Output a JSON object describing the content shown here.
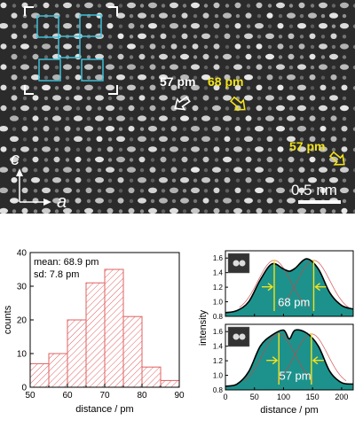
{
  "top_panel": {
    "axis_c": "c",
    "axis_a": "a",
    "label_white": "57 pm",
    "label_yellow_1": "68 pm",
    "label_yellow_2": "57 pm",
    "scale_bar": "0.5 nm",
    "colors": {
      "yellow": "#f2e21b",
      "cyan": "#3cc0d8",
      "white": "#ffffff"
    }
  },
  "chart_data": [
    {
      "type": "bar",
      "bin_edges": [
        50,
        55,
        60,
        65,
        70,
        75,
        80,
        85,
        90
      ],
      "values": [
        7,
        10,
        20,
        31,
        35,
        21,
        6,
        2
      ],
      "xlabel": "distance / pm",
      "ylabel": "counts",
      "xlim": [
        50,
        90
      ],
      "ylim": [
        0,
        40
      ],
      "xticks": [
        "50",
        "60",
        "70",
        "80",
        "90"
      ],
      "yticks": [
        "0",
        "10",
        "20",
        "30",
        "40"
      ],
      "annotations": [
        "mean: 68.9 pm",
        "sd: 7.8 pm"
      ],
      "bar_color": "#e06060"
    },
    {
      "type": "area",
      "annotation": "68 pm",
      "ylabel": "intensity",
      "ylim": [
        0.8,
        1.7
      ],
      "yticks": [
        "0.8",
        "1.0",
        "1.2",
        "1.4",
        "1.6"
      ],
      "xlim": [
        0,
        220
      ],
      "x": [
        0,
        20,
        40,
        60,
        80,
        100,
        110,
        120,
        140,
        160,
        180,
        200,
        220
      ],
      "y": [
        0.85,
        0.88,
        1.0,
        1.3,
        1.52,
        1.45,
        1.42,
        1.46,
        1.59,
        1.45,
        1.12,
        0.95,
        0.9
      ],
      "markers": [
        84,
        152
      ],
      "fill_color": "#118c86"
    },
    {
      "type": "area",
      "annotation": "57 pm",
      "ylabel": "intensity",
      "xlabel": "distance / pm",
      "ylim": [
        0.8,
        1.7
      ],
      "yticks": [
        "0.8",
        "1.0",
        "1.2",
        "1.4",
        "1.6"
      ],
      "xlim": [
        0,
        220
      ],
      "xticks": [
        "0",
        "50",
        "100",
        "150",
        "200"
      ],
      "x": [
        0,
        20,
        40,
        60,
        80,
        100,
        110,
        120,
        140,
        160,
        180,
        200,
        220
      ],
      "y": [
        0.85,
        0.88,
        1.05,
        1.4,
        1.55,
        1.62,
        1.5,
        1.62,
        1.58,
        1.4,
        1.05,
        0.9,
        0.88
      ],
      "markers": [
        92,
        148
      ],
      "fill_color": "#118c86"
    }
  ]
}
